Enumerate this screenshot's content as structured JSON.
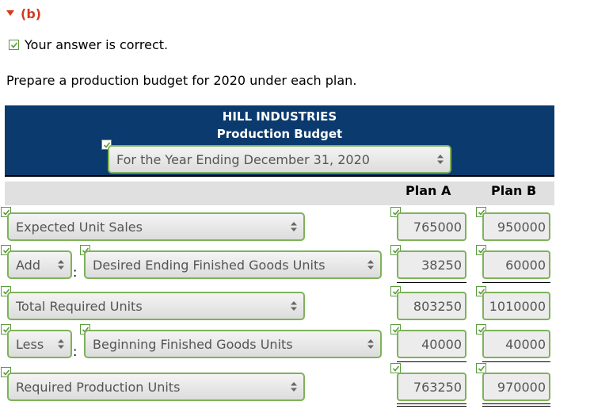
{
  "part": {
    "label": "(b)"
  },
  "status": {
    "text": "Your answer is correct."
  },
  "instructions": "Prepare a production budget for 2020 under each plan.",
  "header": {
    "company": "HILL INDUSTRIES",
    "title": "Production Budget",
    "period_select": "For the Year Ending December 31, 2020"
  },
  "columns": {
    "plan_a": "Plan A",
    "plan_b": "Plan B"
  },
  "rows": [
    {
      "label": "Expected Unit Sales",
      "plan_a": "765000",
      "plan_b": "950000"
    },
    {
      "operator": "Add",
      "label": "Desired Ending Finished Goods Units",
      "plan_a": "38250",
      "plan_b": "60000"
    },
    {
      "label": "Total Required Units",
      "plan_a": "803250",
      "plan_b": "1010000"
    },
    {
      "operator": "Less",
      "label": "Beginning Finished Goods Units",
      "plan_a": "40000",
      "plan_b": "40000"
    },
    {
      "label": "Required Production Units",
      "plan_a": "763250",
      "plan_b": "970000"
    }
  ],
  "colors": {
    "accent": "#d33c1e",
    "banner": "#0b3a6e",
    "correct_border": "#7fb25a"
  }
}
